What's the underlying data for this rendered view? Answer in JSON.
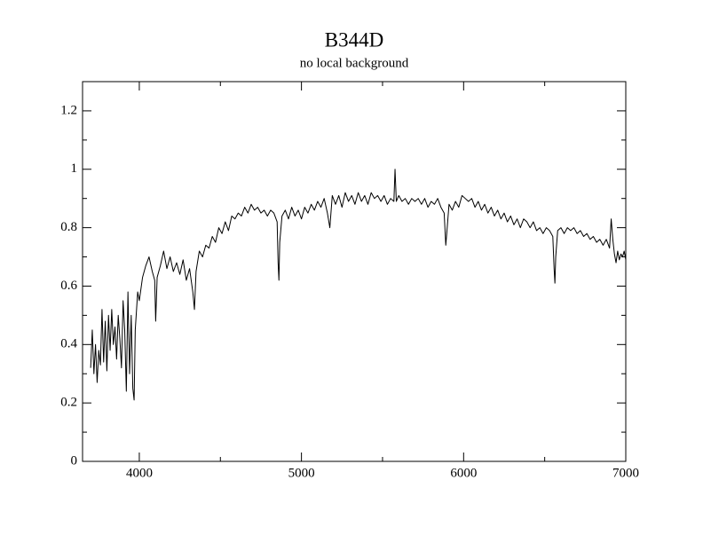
{
  "chart_data": {
    "type": "line",
    "title": "B344D",
    "subtitle": "no local background",
    "x": [
      3700,
      3710,
      3720,
      3730,
      3740,
      3750,
      3760,
      3770,
      3780,
      3790,
      3800,
      3810,
      3820,
      3830,
      3840,
      3850,
      3860,
      3870,
      3880,
      3890,
      3900,
      3910,
      3920,
      3930,
      3940,
      3950,
      3960,
      3968,
      3975,
      3990,
      4000,
      4020,
      4040,
      4060,
      4080,
      4095,
      4101,
      4110,
      4130,
      4150,
      4170,
      4190,
      4210,
      4230,
      4250,
      4270,
      4290,
      4310,
      4330,
      4340,
      4350,
      4370,
      4390,
      4410,
      4430,
      4450,
      4470,
      4490,
      4510,
      4530,
      4550,
      4570,
      4590,
      4610,
      4630,
      4650,
      4670,
      4690,
      4710,
      4730,
      4750,
      4770,
      4790,
      4810,
      4830,
      4850,
      4856,
      4861,
      4866,
      4880,
      4900,
      4920,
      4940,
      4960,
      4980,
      5000,
      5020,
      5040,
      5060,
      5080,
      5100,
      5120,
      5140,
      5160,
      5175,
      5190,
      5210,
      5230,
      5250,
      5270,
      5290,
      5310,
      5330,
      5350,
      5370,
      5390,
      5410,
      5430,
      5450,
      5470,
      5490,
      5510,
      5530,
      5550,
      5570,
      5577,
      5585,
      5600,
      5620,
      5640,
      5660,
      5680,
      5700,
      5720,
      5740,
      5760,
      5780,
      5800,
      5820,
      5840,
      5860,
      5880,
      5890,
      5896,
      5910,
      5930,
      5950,
      5970,
      5990,
      6010,
      6030,
      6050,
      6070,
      6090,
      6110,
      6130,
      6150,
      6170,
      6190,
      6210,
      6230,
      6250,
      6270,
      6290,
      6310,
      6330,
      6350,
      6370,
      6390,
      6410,
      6430,
      6450,
      6470,
      6490,
      6510,
      6530,
      6550,
      6558,
      6563,
      6568,
      6580,
      6600,
      6620,
      6640,
      6660,
      6680,
      6700,
      6720,
      6740,
      6760,
      6780,
      6800,
      6820,
      6840,
      6860,
      6880,
      6900,
      6910,
      6920,
      6930,
      6940,
      6950,
      6960,
      6970,
      6980,
      6990,
      7000
    ],
    "values": [
      0.32,
      0.45,
      0.3,
      0.4,
      0.27,
      0.38,
      0.33,
      0.52,
      0.34,
      0.48,
      0.31,
      0.5,
      0.38,
      0.52,
      0.4,
      0.46,
      0.35,
      0.5,
      0.42,
      0.32,
      0.55,
      0.45,
      0.24,
      0.58,
      0.3,
      0.5,
      0.25,
      0.21,
      0.45,
      0.58,
      0.55,
      0.63,
      0.67,
      0.7,
      0.65,
      0.62,
      0.48,
      0.63,
      0.67,
      0.72,
      0.66,
      0.7,
      0.65,
      0.68,
      0.64,
      0.69,
      0.62,
      0.66,
      0.58,
      0.52,
      0.65,
      0.72,
      0.7,
      0.74,
      0.73,
      0.77,
      0.75,
      0.8,
      0.78,
      0.82,
      0.79,
      0.84,
      0.83,
      0.85,
      0.84,
      0.87,
      0.85,
      0.88,
      0.86,
      0.87,
      0.85,
      0.86,
      0.84,
      0.86,
      0.85,
      0.82,
      0.68,
      0.62,
      0.75,
      0.84,
      0.86,
      0.83,
      0.87,
      0.84,
      0.86,
      0.83,
      0.87,
      0.85,
      0.88,
      0.86,
      0.89,
      0.87,
      0.9,
      0.85,
      0.8,
      0.91,
      0.88,
      0.91,
      0.87,
      0.92,
      0.89,
      0.91,
      0.88,
      0.92,
      0.89,
      0.91,
      0.88,
      0.92,
      0.9,
      0.91,
      0.89,
      0.91,
      0.88,
      0.9,
      0.89,
      1.0,
      0.89,
      0.91,
      0.89,
      0.9,
      0.88,
      0.9,
      0.89,
      0.9,
      0.88,
      0.9,
      0.87,
      0.89,
      0.88,
      0.9,
      0.87,
      0.85,
      0.74,
      0.78,
      0.88,
      0.86,
      0.89,
      0.87,
      0.91,
      0.9,
      0.89,
      0.9,
      0.87,
      0.89,
      0.86,
      0.88,
      0.85,
      0.87,
      0.84,
      0.86,
      0.83,
      0.85,
      0.82,
      0.84,
      0.81,
      0.83,
      0.8,
      0.83,
      0.82,
      0.8,
      0.82,
      0.79,
      0.8,
      0.78,
      0.8,
      0.79,
      0.77,
      0.66,
      0.61,
      0.7,
      0.79,
      0.8,
      0.78,
      0.8,
      0.79,
      0.8,
      0.78,
      0.79,
      0.77,
      0.78,
      0.76,
      0.77,
      0.75,
      0.76,
      0.74,
      0.76,
      0.73,
      0.83,
      0.76,
      0.71,
      0.68,
      0.72,
      0.69,
      0.71,
      0.7,
      0.72,
      0.69
    ],
    "color": "#000000",
    "xlim": [
      3650,
      7000
    ],
    "xticks": [
      4000,
      5000,
      6000,
      7000
    ],
    "xminorticks": [
      4500,
      5500,
      6500
    ],
    "ylim": [
      0,
      1.3
    ],
    "yticks": [
      0,
      0.2,
      0.4,
      0.6,
      0.8,
      1,
      1.2
    ],
    "yminorticks": [
      0.1,
      0.3,
      0.5,
      0.7,
      0.9,
      1.1
    ],
    "grid": false
  }
}
